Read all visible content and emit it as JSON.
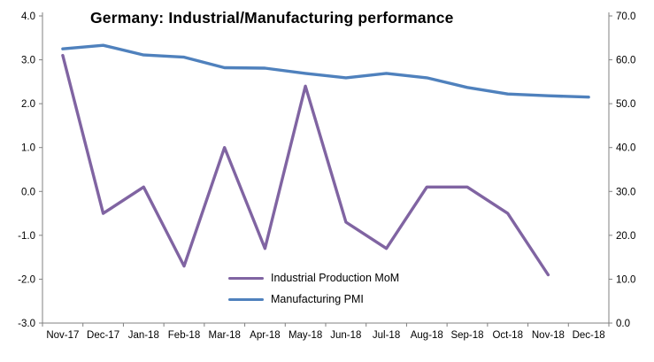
{
  "chart_data": {
    "type": "line",
    "title": "Germany: Industrial/Manufacturing performance",
    "categories": [
      "Nov-17",
      "Dec-17",
      "Jan-18",
      "Feb-18",
      "Mar-18",
      "Apr-18",
      "May-18",
      "Jun-18",
      "Jul-18",
      "Aug-18",
      "Sep-18",
      "Oct-18",
      "Nov-18",
      "Dec-18"
    ],
    "left_axis": {
      "min": -3.0,
      "max": 4.0,
      "ticks": [
        "4.0",
        "3.0",
        "2.0",
        "1.0",
        "0.0",
        "-1.0",
        "-2.0",
        "-3.0"
      ]
    },
    "right_axis": {
      "min": 0.0,
      "max": 70.0,
      "ticks": [
        "70.0",
        "60.0",
        "50.0",
        "40.0",
        "30.0",
        "20.0",
        "10.0",
        "0.0"
      ]
    },
    "grid": false,
    "legend_position": "center-bottom-inside",
    "series": [
      {
        "name": "Industrial Production MoM",
        "axis": "left",
        "color": "#8064A2",
        "values": [
          3.1,
          -0.5,
          0.1,
          -1.7,
          1.0,
          -1.3,
          2.4,
          -0.7,
          -1.3,
          0.1,
          0.1,
          -0.5,
          -1.9,
          null
        ]
      },
      {
        "name": "Manufacturing PMI",
        "axis": "right",
        "color": "#4F81BD",
        "values": [
          62.5,
          63.3,
          61.1,
          60.6,
          58.2,
          58.1,
          56.9,
          55.9,
          56.9,
          55.9,
          53.7,
          52.2,
          51.8,
          51.5
        ]
      }
    ]
  }
}
